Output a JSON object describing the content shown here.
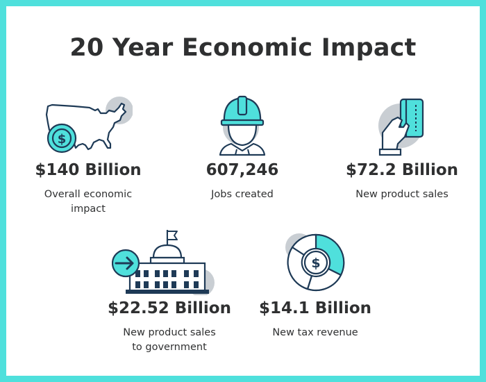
{
  "title": "20 Year Economic Impact",
  "colors": {
    "border": "#4fe0dc",
    "accent": "#4fe0dc",
    "ink": "#1e3a56",
    "shadow": "#c9ced3",
    "text": "#2f3031"
  },
  "stats": [
    {
      "icon": "usa-map-dollar-icon",
      "value": "$140 Billion",
      "label_line1": "Overall economic",
      "label_line2": "impact"
    },
    {
      "icon": "hard-hat-worker-icon",
      "value": "607,246",
      "label_line1": "Jobs created",
      "label_line2": ""
    },
    {
      "icon": "hand-credit-card-icon",
      "value": "$72.2 Billion",
      "label_line1": "New product sales",
      "label_line2": ""
    },
    {
      "icon": "government-building-icon",
      "value": "$22.52 Billion",
      "label_line1": "New product sales",
      "label_line2": "to government"
    },
    {
      "icon": "dollar-pie-chart-icon",
      "value": "$14.1 Billion",
      "label_line1": "New tax revenue",
      "label_line2": ""
    }
  ]
}
